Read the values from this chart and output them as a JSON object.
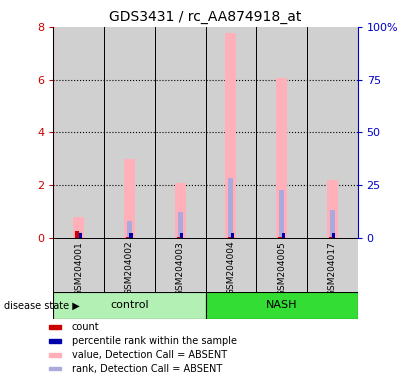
{
  "title": "GDS3431 / rc_AA874918_at",
  "samples": [
    "GSM204001",
    "GSM204002",
    "GSM204003",
    "GSM204004",
    "GSM204005",
    "GSM204017"
  ],
  "group_labels": [
    "control",
    "NASH"
  ],
  "group_colors": [
    "#b3f0b3",
    "#33dd33"
  ],
  "ylim_left": [
    0,
    8
  ],
  "ylim_right": [
    0,
    100
  ],
  "yticks_left": [
    0,
    2,
    4,
    6,
    8
  ],
  "yticks_right": [
    0,
    25,
    50,
    75,
    100
  ],
  "ytick_labels_left": [
    "0",
    "2",
    "4",
    "6",
    "8"
  ],
  "ytick_labels_right": [
    "0",
    "25",
    "50",
    "75",
    "100%"
  ],
  "left_axis_color": "#cc0000",
  "right_axis_color": "#0000cc",
  "value_absent_color": "#ffb0b8",
  "rank_absent_color": "#aaaadd",
  "count_color": "#cc0000",
  "percentile_color": "#0000aa",
  "bar_bg_color": "#d0d0d0",
  "value_absent": [
    0.78,
    3.0,
    2.1,
    7.75,
    6.05,
    2.2
  ],
  "rank_absent": [
    0.22,
    0.65,
    1.0,
    2.28,
    1.82,
    1.05
  ],
  "count_val": [
    0.28,
    0.05,
    0.05,
    0.05,
    0.05,
    0.05
  ],
  "percentile_val": [
    0.18,
    0.18,
    0.18,
    0.18,
    0.18,
    0.18
  ],
  "legend_items": [
    {
      "label": "count",
      "color": "#cc0000"
    },
    {
      "label": "percentile rank within the sample",
      "color": "#0000aa"
    },
    {
      "label": "value, Detection Call = ABSENT",
      "color": "#ffb0b8"
    },
    {
      "label": "rank, Detection Call = ABSENT",
      "color": "#aaaadd"
    }
  ]
}
